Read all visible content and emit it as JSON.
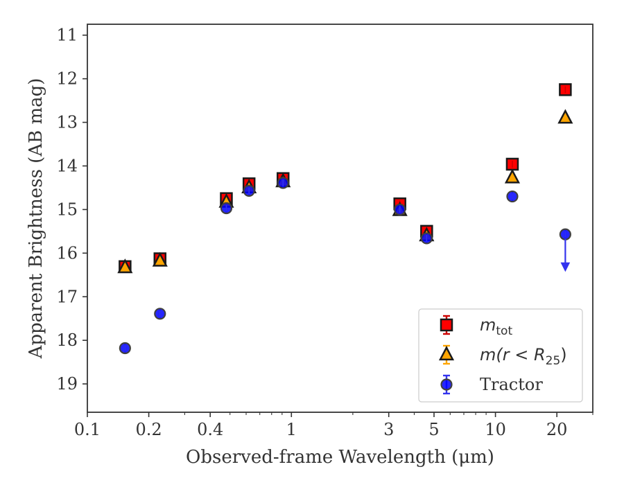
{
  "chart_data": {
    "type": "scatter",
    "title": "",
    "xlabel": "Observed-frame Wavelength (μm)",
    "ylabel": "Apparent Brightness (AB mag)",
    "xscale": "log",
    "xlim": [
      0.1,
      30
    ],
    "ylim": [
      19.65,
      10.75
    ],
    "y_inverted": true,
    "grid": false,
    "legend_position": "bottom-right",
    "xticks": [
      {
        "value": 0.1,
        "label": "0.1"
      },
      {
        "value": 0.2,
        "label": "0.2"
      },
      {
        "value": 0.4,
        "label": "0.4"
      },
      {
        "value": 1,
        "label": "1"
      },
      {
        "value": 3,
        "label": "3"
      },
      {
        "value": 5,
        "label": "5"
      },
      {
        "value": 10,
        "label": "10"
      },
      {
        "value": 20,
        "label": "20"
      }
    ],
    "yticks": [
      {
        "value": 11,
        "label": "11"
      },
      {
        "value": 12,
        "label": "12"
      },
      {
        "value": 13,
        "label": "13"
      },
      {
        "value": 14,
        "label": "14"
      },
      {
        "value": 15,
        "label": "15"
      },
      {
        "value": 16,
        "label": "16"
      },
      {
        "value": 17,
        "label": "17"
      },
      {
        "value": 18,
        "label": "18"
      },
      {
        "value": 19,
        "label": "19"
      }
    ],
    "series": [
      {
        "name": "m_tot",
        "legend_main": "m",
        "legend_sub": "tot",
        "marker": "square",
        "color": "#ff0000",
        "edge": "#1a1a1a",
        "errcolor": "#cc0000",
        "points": [
          {
            "x": 0.153,
            "y": 16.31
          },
          {
            "x": 0.227,
            "y": 16.13
          },
          {
            "x": 0.48,
            "y": 14.75
          },
          {
            "x": 0.62,
            "y": 14.41
          },
          {
            "x": 0.91,
            "y": 14.29
          },
          {
            "x": 3.4,
            "y": 14.87
          },
          {
            "x": 4.6,
            "y": 15.5
          },
          {
            "x": 12.1,
            "y": 13.96
          },
          {
            "x": 22,
            "y": 12.25
          }
        ]
      },
      {
        "name": "m(r<R_25)",
        "legend_main": "m(r < R",
        "legend_sub": "25",
        "legend_tail": ")",
        "marker": "triangle",
        "color": "#ffa500",
        "edge": "#1a1a1a",
        "errcolor": "#ffa500",
        "points": [
          {
            "x": 0.153,
            "y": 16.33
          },
          {
            "x": 0.227,
            "y": 16.18
          },
          {
            "x": 0.48,
            "y": 14.83
          },
          {
            "x": 0.62,
            "y": 14.5
          },
          {
            "x": 0.91,
            "y": 14.36
          },
          {
            "x": 3.4,
            "y": 15.02
          },
          {
            "x": 4.6,
            "y": 15.6
          },
          {
            "x": 12.1,
            "y": 14.27
          },
          {
            "x": 22,
            "y": 12.9
          }
        ]
      },
      {
        "name": "Tractor",
        "legend_main": "Tractor",
        "marker": "circle",
        "color": "#0000ff",
        "edge": "#404040",
        "errcolor": "#3333ee",
        "points": [
          {
            "x": 0.153,
            "y": 18.18
          },
          {
            "x": 0.227,
            "y": 17.39
          },
          {
            "x": 0.48,
            "y": 14.97
          },
          {
            "x": 0.62,
            "y": 14.57
          },
          {
            "x": 0.91,
            "y": 14.39
          },
          {
            "x": 3.4,
            "y": 15.0
          },
          {
            "x": 4.6,
            "y": 15.66
          },
          {
            "x": 12.1,
            "y": 14.7
          },
          {
            "x": 22,
            "y": 15.57,
            "upper_limit": true,
            "arrow_to": 16.38
          }
        ]
      }
    ]
  }
}
